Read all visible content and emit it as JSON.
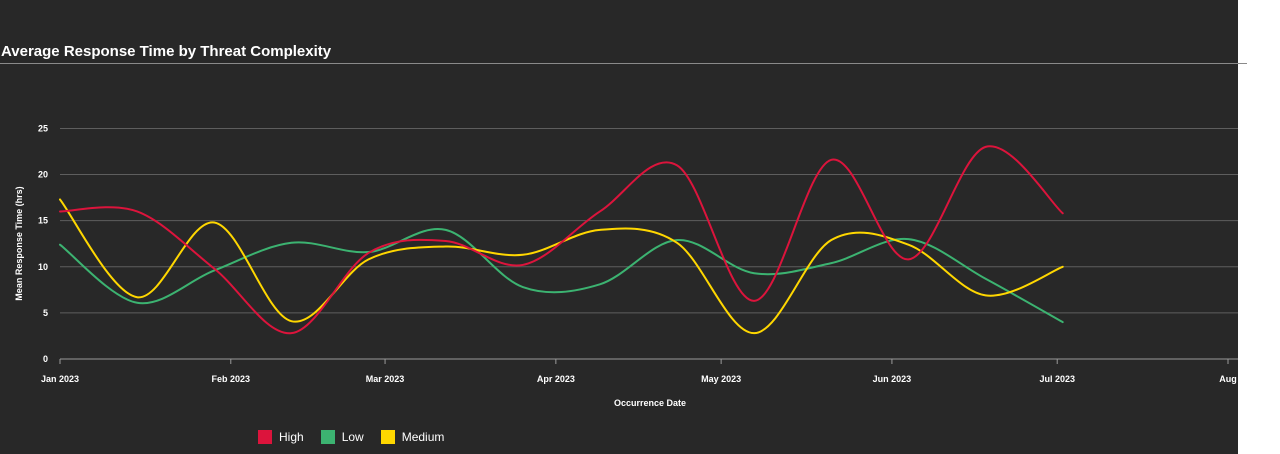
{
  "chart_data": {
    "type": "line",
    "title": "Average Response Time by Threat Complexity",
    "xlabel": "Occurrence Date",
    "ylabel": "Mean Response Time (hrs)",
    "x_ticks": [
      "Jan 2023",
      "Feb 2023",
      "Mar 2023",
      "Apr 2023",
      "May 2023",
      "Jun 2023",
      "Jul 2023",
      "Aug"
    ],
    "y_ticks": [
      0,
      5,
      10,
      15,
      20,
      25
    ],
    "ylim": [
      0,
      27
    ],
    "grid": true,
    "legend_position": "bottom",
    "series": [
      {
        "name": "High",
        "color": "#dc143c",
        "points": [
          [
            "2023-01-01",
            16.0
          ],
          [
            "2023-01-15",
            16.0
          ],
          [
            "2023-01-29",
            9.8
          ],
          [
            "2023-02-12",
            2.8
          ],
          [
            "2023-02-26",
            11.5
          ],
          [
            "2023-03-12",
            12.8
          ],
          [
            "2023-03-26",
            10.2
          ],
          [
            "2023-04-09",
            16.0
          ],
          [
            "2023-04-23",
            21.0
          ],
          [
            "2023-05-07",
            6.3
          ],
          [
            "2023-05-21",
            21.6
          ],
          [
            "2023-06-04",
            10.8
          ],
          [
            "2023-06-18",
            23.0
          ],
          [
            "2023-07-02",
            15.8
          ]
        ]
      },
      {
        "name": "Low",
        "color": "#3cb371",
        "points": [
          [
            "2023-01-01",
            12.4
          ],
          [
            "2023-01-15",
            6.1
          ],
          [
            "2023-01-29",
            9.6
          ],
          [
            "2023-02-12",
            12.6
          ],
          [
            "2023-02-26",
            11.6
          ],
          [
            "2023-03-12",
            14.0
          ],
          [
            "2023-03-26",
            7.8
          ],
          [
            "2023-04-09",
            8.1
          ],
          [
            "2023-04-23",
            12.9
          ],
          [
            "2023-05-07",
            9.3
          ],
          [
            "2023-05-21",
            10.4
          ],
          [
            "2023-06-04",
            13.0
          ],
          [
            "2023-06-18",
            8.7
          ],
          [
            "2023-07-02",
            4.0
          ]
        ]
      },
      {
        "name": "Medium",
        "color": "#ffd700",
        "points": [
          [
            "2023-01-01",
            17.3
          ],
          [
            "2023-01-15",
            6.7
          ],
          [
            "2023-01-29",
            14.8
          ],
          [
            "2023-02-12",
            4.1
          ],
          [
            "2023-02-26",
            10.8
          ],
          [
            "2023-03-12",
            12.2
          ],
          [
            "2023-03-26",
            11.3
          ],
          [
            "2023-04-09",
            14.0
          ],
          [
            "2023-04-23",
            12.6
          ],
          [
            "2023-05-07",
            2.8
          ],
          [
            "2023-05-21",
            12.9
          ],
          [
            "2023-06-04",
            12.4
          ],
          [
            "2023-06-18",
            6.9
          ],
          [
            "2023-07-02",
            10.0
          ]
        ]
      }
    ]
  }
}
